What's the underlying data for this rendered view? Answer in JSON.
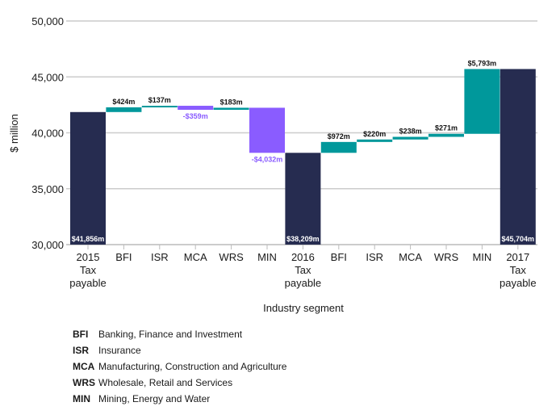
{
  "chart_data": {
    "type": "bar",
    "subtype": "waterfall",
    "title": "",
    "xlabel": "Industry segment",
    "ylabel": "$ million",
    "ylim": [
      30000,
      50000
    ],
    "yticks": [
      30000,
      35000,
      40000,
      45000,
      50000
    ],
    "ytick_labels": [
      "30,000",
      "35,000",
      "40,000",
      "45,000",
      "50,000"
    ],
    "grid": true,
    "colors": {
      "total": "#262c50",
      "increase": "#00989b",
      "decrease": "#8a5cff"
    },
    "categories": [
      [
        "2015",
        "Tax",
        "payable"
      ],
      [
        "BFI"
      ],
      [
        "ISR"
      ],
      [
        "MCA"
      ],
      [
        "WRS"
      ],
      [
        "MIN"
      ],
      [
        "2016",
        "Tax",
        "payable"
      ],
      [
        "BFI"
      ],
      [
        "ISR"
      ],
      [
        "MCA"
      ],
      [
        "WRS"
      ],
      [
        "MIN"
      ],
      [
        "2017",
        "Tax",
        "payable"
      ]
    ],
    "bars": [
      {
        "kind": "total",
        "value": 41856,
        "label": "$41,856m"
      },
      {
        "kind": "delta",
        "value": 424,
        "label": "$424m"
      },
      {
        "kind": "delta",
        "value": 137,
        "label": "$137m"
      },
      {
        "kind": "delta",
        "value": -359,
        "label": "-$359m"
      },
      {
        "kind": "delta",
        "value": 183,
        "label": "$183m"
      },
      {
        "kind": "delta",
        "value": -4032,
        "label": "-$4,032m"
      },
      {
        "kind": "total",
        "value": 38209,
        "label": "$38,209m"
      },
      {
        "kind": "delta",
        "value": 972,
        "label": "$972m"
      },
      {
        "kind": "delta",
        "value": 220,
        "label": "$220m"
      },
      {
        "kind": "delta",
        "value": 238,
        "label": "$238m"
      },
      {
        "kind": "delta",
        "value": 271,
        "label": "$271m"
      },
      {
        "kind": "delta",
        "value": 5793,
        "label": "$5,793m"
      },
      {
        "kind": "total",
        "value": 45704,
        "label": "$45,704m"
      }
    ]
  },
  "legend": [
    {
      "abbr": "BFI",
      "text": "Banking, Finance and Investment"
    },
    {
      "abbr": "ISR",
      "text": "Insurance"
    },
    {
      "abbr": "MCA",
      "text": "Manufacturing, Construction and Agriculture"
    },
    {
      "abbr": "WRS",
      "text": "Wholesale, Retail and Services"
    },
    {
      "abbr": "MIN",
      "text": "Mining, Energy and Water"
    }
  ]
}
